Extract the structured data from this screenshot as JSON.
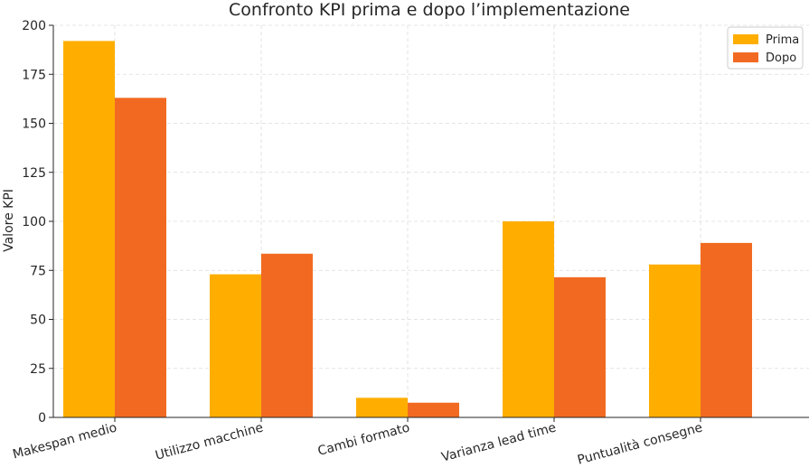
{
  "chart_data": {
    "type": "bar",
    "title": "Confronto KPI prima e dopo l’implementazione",
    "xlabel": "",
    "ylabel": "Valore KPI",
    "categories": [
      "Makespan medio",
      "Utilizzo macchine",
      "Cambi formato",
      "Varianza lead time",
      "Puntualità consegne"
    ],
    "series": [
      {
        "name": "Prima",
        "color": "#FFAE00",
        "values": [
          192,
          73,
          10,
          100,
          78
        ]
      },
      {
        "name": "Dopo",
        "color": "#F26A21",
        "values": [
          163,
          83.5,
          7.5,
          71.5,
          89
        ]
      }
    ],
    "ylim": [
      0,
      200
    ],
    "yticks": [
      0,
      25,
      50,
      75,
      100,
      125,
      150,
      175,
      200
    ],
    "grid": true,
    "legend": "top-right"
  }
}
